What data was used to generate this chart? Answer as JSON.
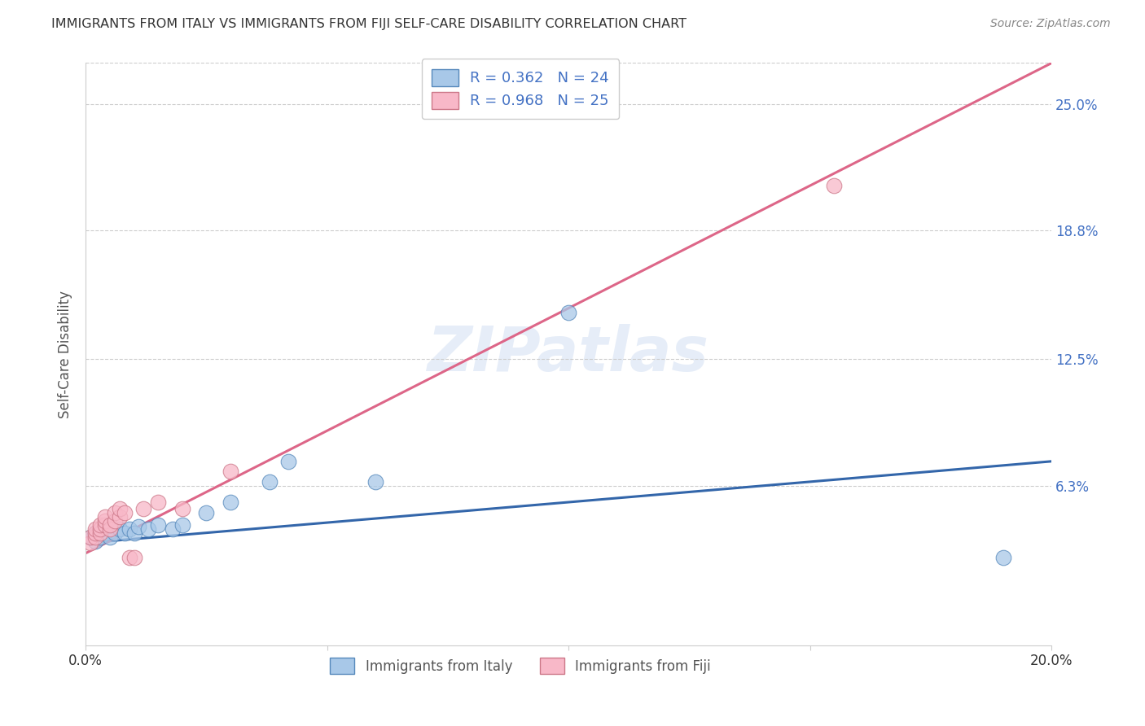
{
  "title": "IMMIGRANTS FROM ITALY VS IMMIGRANTS FROM FIJI SELF-CARE DISABILITY CORRELATION CHART",
  "source": "Source: ZipAtlas.com",
  "ylabel": "Self-Care Disability",
  "ytick_labels": [
    "25.0%",
    "18.8%",
    "12.5%",
    "6.3%"
  ],
  "ytick_values": [
    0.25,
    0.188,
    0.125,
    0.063
  ],
  "xlim": [
    0.0,
    0.2
  ],
  "ylim": [
    -0.015,
    0.27
  ],
  "legend_italy_R": "R = 0.362",
  "legend_italy_N": "N = 24",
  "legend_fiji_R": "R = 0.968",
  "legend_fiji_N": "N = 25",
  "color_italy_fill": "#a8c8e8",
  "color_fiji_fill": "#f8b8c8",
  "color_italy_edge": "#5588bb",
  "color_fiji_edge": "#cc7788",
  "color_italy_line": "#3366aa",
  "color_fiji_line": "#dd6688",
  "color_ytick": "#4472c4",
  "background": "#ffffff",
  "watermark": "ZIPatlas",
  "italy_x": [
    0.001,
    0.002,
    0.002,
    0.003,
    0.003,
    0.004,
    0.005,
    0.006,
    0.007,
    0.008,
    0.009,
    0.01,
    0.011,
    0.013,
    0.015,
    0.018,
    0.02,
    0.025,
    0.03,
    0.038,
    0.042,
    0.06,
    0.1,
    0.19
  ],
  "italy_y": [
    0.038,
    0.04,
    0.036,
    0.04,
    0.038,
    0.04,
    0.038,
    0.04,
    0.042,
    0.04,
    0.042,
    0.04,
    0.043,
    0.042,
    0.044,
    0.042,
    0.044,
    0.05,
    0.055,
    0.065,
    0.075,
    0.065,
    0.148,
    0.028
  ],
  "fiji_x": [
    0.001,
    0.001,
    0.002,
    0.002,
    0.002,
    0.003,
    0.003,
    0.003,
    0.004,
    0.004,
    0.004,
    0.005,
    0.005,
    0.006,
    0.006,
    0.007,
    0.007,
    0.008,
    0.009,
    0.01,
    0.012,
    0.015,
    0.02,
    0.03,
    0.155
  ],
  "fiji_y": [
    0.035,
    0.038,
    0.038,
    0.04,
    0.042,
    0.04,
    0.042,
    0.044,
    0.044,
    0.046,
    0.048,
    0.042,
    0.044,
    0.046,
    0.05,
    0.048,
    0.052,
    0.05,
    0.028,
    0.028,
    0.052,
    0.055,
    0.052,
    0.07,
    0.21
  ],
  "italy_line_x": [
    0.0,
    0.2
  ],
  "italy_line_y": [
    0.035,
    0.075
  ],
  "fiji_line_x": [
    0.0,
    0.2
  ],
  "fiji_line_y": [
    0.03,
    0.27
  ]
}
